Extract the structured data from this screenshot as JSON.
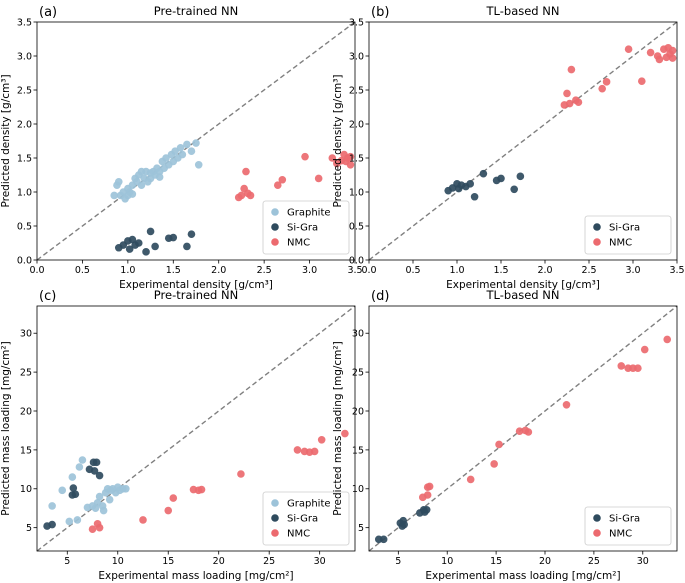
{
  "colors": {
    "Graphite": "#9dc3d9",
    "Si-Gra": "#2f4b5e",
    "NMC": "#ec6a6f"
  },
  "chart_data": [
    {
      "type": "scatter",
      "panel": "(a)",
      "title": "Pre-trained NN",
      "xlabel": "Experimental density [g/cm³]",
      "ylabel": "Predicted density [g/cm³]",
      "xlim": [
        0,
        3.5
      ],
      "ylim": [
        0,
        3.5
      ],
      "xticks": [
        "0.0",
        "0.5",
        "1.0",
        "1.5",
        "2.0",
        "2.5",
        "3.0",
        "3.5"
      ],
      "yticks": [
        "0.0",
        "0.5",
        "1.0",
        "1.5",
        "2.0",
        "2.5",
        "3.0",
        "3.5"
      ],
      "legend_position": "bottom-right",
      "series": [
        {
          "name": "Graphite",
          "points": [
            [
              0.85,
              0.95
            ],
            [
              0.88,
              1.1
            ],
            [
              0.9,
              1.15
            ],
            [
              0.92,
              0.95
            ],
            [
              0.95,
              1.0
            ],
            [
              0.97,
              0.9
            ],
            [
              1.0,
              1.05
            ],
            [
              1.0,
              0.95
            ],
            [
              1.02,
              1.0
            ],
            [
              1.05,
              1.1
            ],
            [
              1.05,
              0.97
            ],
            [
              1.08,
              1.2
            ],
            [
              1.1,
              1.15
            ],
            [
              1.12,
              1.25
            ],
            [
              1.15,
              1.3
            ],
            [
              1.15,
              1.1
            ],
            [
              1.18,
              1.2
            ],
            [
              1.2,
              1.3
            ],
            [
              1.22,
              1.15
            ],
            [
              1.25,
              1.2
            ],
            [
              1.28,
              1.3
            ],
            [
              1.3,
              1.25
            ],
            [
              1.32,
              1.35
            ],
            [
              1.35,
              1.3
            ],
            [
              1.38,
              1.45
            ],
            [
              1.4,
              1.35
            ],
            [
              1.42,
              1.5
            ],
            [
              1.45,
              1.4
            ],
            [
              1.48,
              1.55
            ],
            [
              1.5,
              1.45
            ],
            [
              1.52,
              1.6
            ],
            [
              1.55,
              1.5
            ],
            [
              1.58,
              1.65
            ],
            [
              1.6,
              1.55
            ],
            [
              1.65,
              1.7
            ],
            [
              1.7,
              1.6
            ],
            [
              1.75,
              1.72
            ],
            [
              1.78,
              1.4
            ],
            [
              1.25,
              1.28
            ],
            [
              1.35,
              1.22
            ]
          ]
        },
        {
          "name": "Si-Gra",
          "points": [
            [
              0.9,
              0.18
            ],
            [
              0.95,
              0.22
            ],
            [
              1.0,
              0.28
            ],
            [
              1.02,
              0.16
            ],
            [
              1.05,
              0.3
            ],
            [
              1.08,
              0.22
            ],
            [
              1.12,
              0.25
            ],
            [
              1.2,
              0.12
            ],
            [
              1.25,
              0.42
            ],
            [
              1.3,
              0.2
            ],
            [
              1.45,
              0.32
            ],
            [
              1.5,
              0.33
            ],
            [
              1.65,
              0.2
            ],
            [
              1.7,
              0.38
            ]
          ]
        },
        {
          "name": "NMC",
          "points": [
            [
              2.22,
              0.92
            ],
            [
              2.25,
              0.95
            ],
            [
              2.28,
              1.05
            ],
            [
              2.3,
              1.3
            ],
            [
              2.32,
              0.98
            ],
            [
              2.35,
              0.95
            ],
            [
              2.65,
              1.1
            ],
            [
              2.7,
              1.18
            ],
            [
              2.95,
              1.52
            ],
            [
              3.1,
              1.2
            ],
            [
              3.25,
              1.5
            ],
            [
              3.3,
              1.42
            ],
            [
              3.35,
              1.46
            ],
            [
              3.38,
              1.55
            ],
            [
              3.4,
              1.45
            ],
            [
              3.42,
              1.5
            ],
            [
              3.45,
              1.52
            ],
            [
              3.45,
              1.4
            ]
          ]
        }
      ]
    },
    {
      "type": "scatter",
      "panel": "(b)",
      "title": "TL-based NN",
      "xlabel": "Experimental density [g/cm³]",
      "ylabel": "Predicted density [g/cm³]",
      "xlim": [
        0,
        3.5
      ],
      "ylim": [
        0,
        3.5
      ],
      "xticks": [
        "0.0",
        "0.5",
        "1.0",
        "1.5",
        "2.0",
        "2.5",
        "3.0",
        "3.5"
      ],
      "yticks": [
        "0.0",
        "0.5",
        "1.0",
        "1.5",
        "2.0",
        "2.5",
        "3.0",
        "3.5"
      ],
      "legend_position": "bottom-right",
      "series": [
        {
          "name": "Si-Gra",
          "points": [
            [
              0.9,
              1.02
            ],
            [
              0.95,
              1.06
            ],
            [
              1.0,
              1.12
            ],
            [
              1.02,
              1.05
            ],
            [
              1.05,
              1.1
            ],
            [
              1.1,
              1.08
            ],
            [
              1.15,
              1.12
            ],
            [
              1.2,
              0.93
            ],
            [
              1.3,
              1.27
            ],
            [
              1.45,
              1.17
            ],
            [
              1.5,
              1.2
            ],
            [
              1.65,
              1.04
            ],
            [
              1.72,
              1.23
            ]
          ]
        },
        {
          "name": "NMC",
          "points": [
            [
              2.22,
              2.28
            ],
            [
              2.25,
              2.45
            ],
            [
              2.28,
              2.3
            ],
            [
              2.3,
              2.8
            ],
            [
              2.35,
              2.35
            ],
            [
              2.38,
              2.32
            ],
            [
              2.65,
              2.52
            ],
            [
              2.7,
              2.62
            ],
            [
              2.95,
              3.1
            ],
            [
              3.1,
              2.63
            ],
            [
              3.2,
              3.05
            ],
            [
              3.28,
              3.0
            ],
            [
              3.3,
              2.95
            ],
            [
              3.35,
              3.1
            ],
            [
              3.38,
              2.98
            ],
            [
              3.4,
              3.12
            ],
            [
              3.42,
              3.03
            ],
            [
              3.45,
              3.08
            ],
            [
              3.45,
              2.97
            ]
          ]
        }
      ]
    },
    {
      "type": "scatter",
      "panel": "(c)",
      "title": "Pre-trained NN",
      "xlabel": "Experimental mass loading [mg/cm²]",
      "ylabel": "Predicted mass loading [mg/cm²]",
      "xlim": [
        2,
        33.5
      ],
      "ylim": [
        2,
        33.5
      ],
      "xticks": [
        "5",
        "10",
        "15",
        "20",
        "25",
        "30"
      ],
      "yticks": [
        "5",
        "10",
        "15",
        "20",
        "25",
        "30"
      ],
      "legend_position": "bottom-right",
      "series": [
        {
          "name": "Graphite",
          "points": [
            [
              3.5,
              7.8
            ],
            [
              4.5,
              9.8
            ],
            [
              5.2,
              5.8
            ],
            [
              5.5,
              11.5
            ],
            [
              6.0,
              6.0
            ],
            [
              6.2,
              12.8
            ],
            [
              6.5,
              13.7
            ],
            [
              7.0,
              7.6
            ],
            [
              7.5,
              7.8
            ],
            [
              7.8,
              7.5
            ],
            [
              8.0,
              8.2
            ],
            [
              8.2,
              9.0
            ],
            [
              8.5,
              7.8
            ],
            [
              8.8,
              9.5
            ],
            [
              9.0,
              10.0
            ],
            [
              9.2,
              8.6
            ],
            [
              9.5,
              10.0
            ],
            [
              9.8,
              9.5
            ],
            [
              10.0,
              10.2
            ],
            [
              10.2,
              9.8
            ],
            [
              10.5,
              10.0
            ],
            [
              10.8,
              10.0
            ],
            [
              9.3,
              9.8
            ],
            [
              8.6,
              7.2
            ]
          ]
        },
        {
          "name": "Si-Gra",
          "points": [
            [
              3.0,
              5.2
            ],
            [
              3.5,
              5.4
            ],
            [
              5.5,
              9.2
            ],
            [
              5.6,
              10.1
            ],
            [
              5.8,
              9.3
            ],
            [
              7.2,
              12.5
            ],
            [
              7.6,
              13.4
            ],
            [
              7.9,
              13.4
            ],
            [
              7.7,
              12.3
            ],
            [
              8.2,
              11.7
            ]
          ]
        },
        {
          "name": "NMC",
          "points": [
            [
              7.5,
              4.8
            ],
            [
              8.0,
              5.5
            ],
            [
              8.2,
              5.0
            ],
            [
              12.5,
              6.0
            ],
            [
              15.0,
              7.2
            ],
            [
              15.5,
              8.8
            ],
            [
              17.5,
              9.9
            ],
            [
              18.0,
              9.8
            ],
            [
              18.3,
              9.9
            ],
            [
              22.2,
              11.9
            ],
            [
              27.8,
              15.0
            ],
            [
              28.5,
              14.8
            ],
            [
              29.0,
              14.7
            ],
            [
              29.5,
              14.8
            ],
            [
              30.2,
              16.3
            ],
            [
              32.5,
              17.1
            ]
          ]
        }
      ]
    },
    {
      "type": "scatter",
      "panel": "(d)",
      "title": "TL-based NN",
      "xlabel": "Experimental mass loading [mg/cm²]",
      "ylabel": "Predicted mass loading [mg/cm²]",
      "xlim": [
        2,
        33.5
      ],
      "ylim": [
        2,
        33.5
      ],
      "xticks": [
        "5",
        "10",
        "15",
        "20",
        "25",
        "30"
      ],
      "yticks": [
        "5",
        "10",
        "15",
        "20",
        "25",
        "30"
      ],
      "legend_position": "bottom-right",
      "series": [
        {
          "name": "Si-Gra",
          "points": [
            [
              3.0,
              3.5
            ],
            [
              3.5,
              3.5
            ],
            [
              5.2,
              5.6
            ],
            [
              5.4,
              5.2
            ],
            [
              5.5,
              5.9
            ],
            [
              7.2,
              6.9
            ],
            [
              7.6,
              7.3
            ],
            [
              7.9,
              7.3
            ],
            [
              7.7,
              7.0
            ],
            [
              5.6,
              5.4
            ]
          ]
        },
        {
          "name": "NMC",
          "points": [
            [
              7.5,
              8.9
            ],
            [
              8.0,
              10.2
            ],
            [
              8.2,
              10.3
            ],
            [
              8.0,
              9.2
            ],
            [
              12.4,
              11.2
            ],
            [
              14.8,
              13.2
            ],
            [
              15.3,
              15.7
            ],
            [
              17.4,
              17.4
            ],
            [
              18.0,
              17.5
            ],
            [
              18.3,
              17.3
            ],
            [
              22.2,
              20.8
            ],
            [
              27.8,
              25.8
            ],
            [
              28.5,
              25.5
            ],
            [
              29.0,
              25.5
            ],
            [
              29.5,
              25.5
            ],
            [
              30.2,
              27.9
            ],
            [
              32.5,
              29.2
            ]
          ]
        }
      ]
    }
  ]
}
